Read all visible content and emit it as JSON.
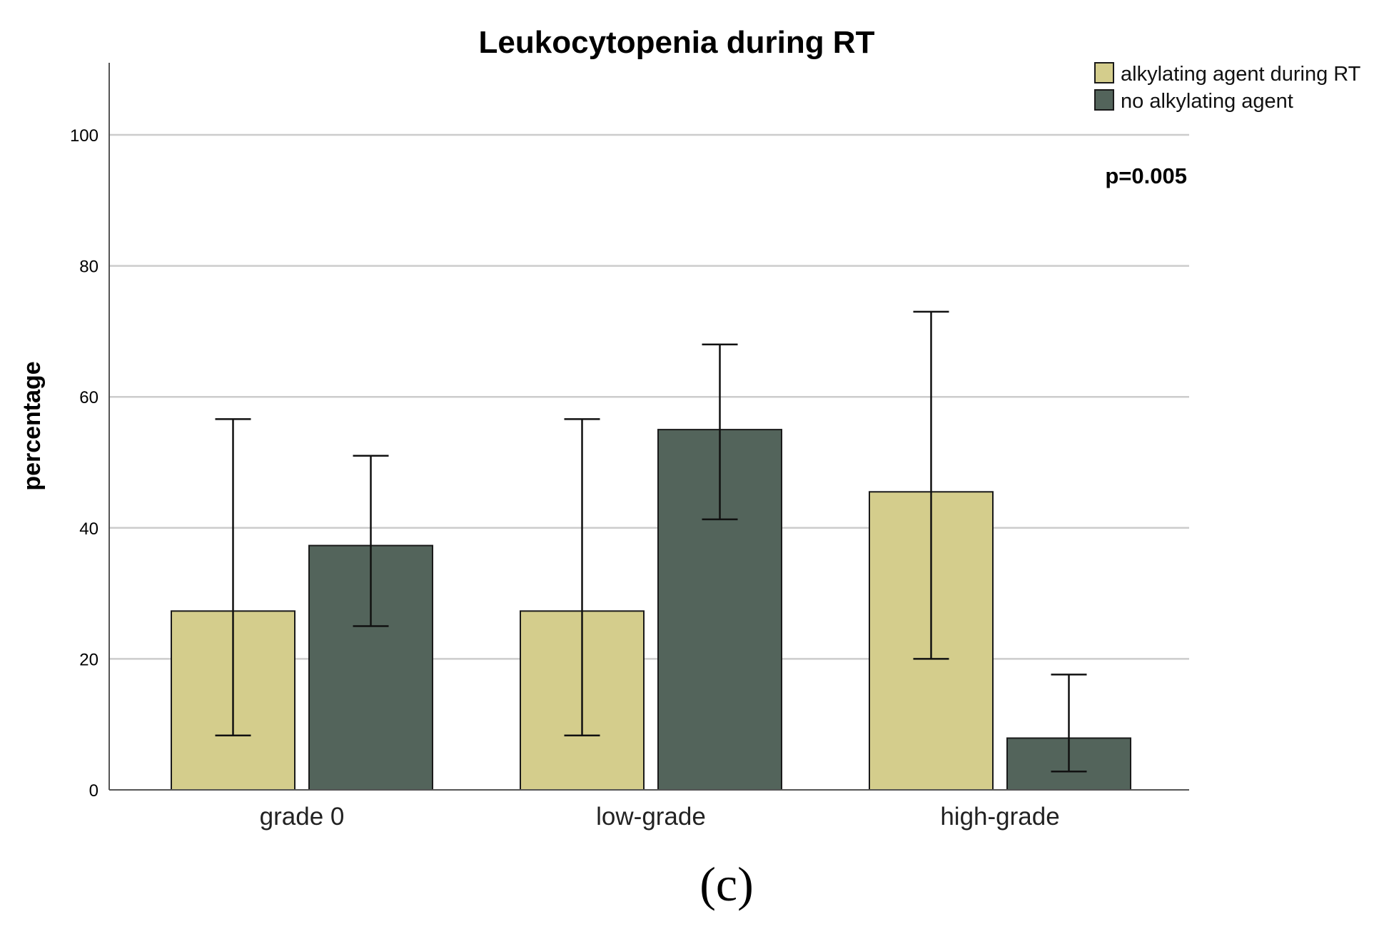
{
  "colors": {
    "alkylating": "#d4cd8c",
    "no_alkylating": "#53645b",
    "grid": "#cccccc",
    "axis": "#555555"
  },
  "chart_data": {
    "type": "bar",
    "title": "Leukocytopenia during RT",
    "ylabel": "percentage",
    "xlabel": "",
    "ylim": [
      0,
      111
    ],
    "yticks": [
      "0",
      "20",
      "40",
      "60",
      "80",
      "100"
    ],
    "grid": true,
    "legend_placement": "top-right",
    "categories": [
      "grade 0",
      "low-grade",
      "high-grade"
    ],
    "series": [
      {
        "name": "alkylating agent during RT",
        "values": [
          27.3,
          27.3,
          45.5
        ],
        "error_low": [
          8.3,
          8.3,
          20.0
        ],
        "error_high": [
          56.6,
          56.6,
          73.0
        ]
      },
      {
        "name": "no alkylating agent",
        "values": [
          37.3,
          55.0,
          7.9
        ],
        "error_low": [
          25.0,
          41.3,
          2.8
        ],
        "error_high": [
          51.0,
          68.0,
          17.6
        ]
      }
    ],
    "annotation": "p=0.005"
  },
  "panel_label": "(c)"
}
